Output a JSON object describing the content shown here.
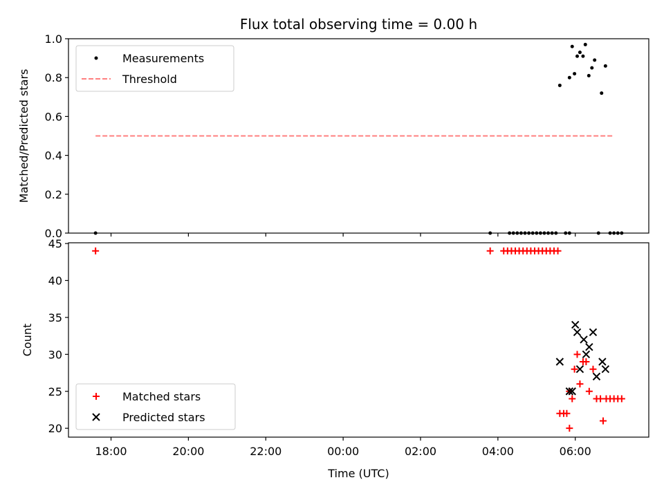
{
  "chart_data": [
    {
      "type": "scatter",
      "title": "Flux total observing time = 0.00 h",
      "xlabel": "",
      "ylabel": "Matched/Predicted stars",
      "xlim": [
        -1.1,
        13.9
      ],
      "ylim": [
        0,
        1.0
      ],
      "yticks": [
        "0.0",
        "0.2",
        "0.4",
        "0.6",
        "0.8",
        "1.0"
      ],
      "ytick_values": [
        0,
        0.2,
        0.4,
        0.6,
        0.8,
        1.0
      ],
      "legend_position": "upper left",
      "grid": false,
      "series": [
        {
          "name": "Measurements",
          "marker": "dot",
          "color": "#000000",
          "points": [
            [
              -0.4,
              0.0
            ],
            [
              9.8,
              0.0
            ],
            [
              10.3,
              0.0
            ],
            [
              10.4,
              0.0
            ],
            [
              10.5,
              0.0
            ],
            [
              10.6,
              0.0
            ],
            [
              10.7,
              0.0
            ],
            [
              10.8,
              0.0
            ],
            [
              10.9,
              0.0
            ],
            [
              11.0,
              0.0
            ],
            [
              11.1,
              0.0
            ],
            [
              11.2,
              0.0
            ],
            [
              11.3,
              0.0
            ],
            [
              11.4,
              0.0
            ],
            [
              11.5,
              0.0
            ],
            [
              11.75,
              0.0
            ],
            [
              11.85,
              0.0
            ],
            [
              12.6,
              0.0
            ],
            [
              12.9,
              0.0
            ],
            [
              13.0,
              0.0
            ],
            [
              13.1,
              0.0
            ],
            [
              13.2,
              0.0
            ],
            [
              11.6,
              0.76
            ],
            [
              11.85,
              0.8
            ],
            [
              11.92,
              0.96
            ],
            [
              11.98,
              0.82
            ],
            [
              12.05,
              0.91
            ],
            [
              12.12,
              0.93
            ],
            [
              12.2,
              0.91
            ],
            [
              12.26,
              0.97
            ],
            [
              12.35,
              0.81
            ],
            [
              12.43,
              0.85
            ],
            [
              12.5,
              0.89
            ],
            [
              12.68,
              0.72
            ],
            [
              12.78,
              0.86
            ]
          ]
        },
        {
          "name": "Threshold",
          "marker": "dashed-line",
          "color": "#ff7f7f",
          "points": [
            [
              -0.4,
              0.5
            ],
            [
              13.0,
              0.5
            ]
          ]
        }
      ]
    },
    {
      "type": "scatter",
      "title": "",
      "xlabel": "Time (UTC)",
      "ylabel": "Count",
      "xlim": [
        -1.1,
        13.9
      ],
      "ylim": [
        18.8,
        45.1
      ],
      "xticks": [
        "18:00",
        "20:00",
        "22:00",
        "00:00",
        "02:00",
        "04:00",
        "06:00"
      ],
      "xtick_values": [
        0,
        2,
        4,
        6,
        8,
        10,
        12
      ],
      "yticks": [
        "20",
        "25",
        "30",
        "35",
        "40",
        "45"
      ],
      "ytick_values": [
        20,
        25,
        30,
        35,
        40,
        45
      ],
      "legend_position": "lower left",
      "grid": false,
      "series": [
        {
          "name": "Matched stars",
          "marker": "plus",
          "color": "#ff0000",
          "points": [
            [
              -0.4,
              44
            ],
            [
              9.8,
              44
            ],
            [
              10.15,
              44
            ],
            [
              10.25,
              44
            ],
            [
              10.35,
              44
            ],
            [
              10.45,
              44
            ],
            [
              10.55,
              44
            ],
            [
              10.65,
              44
            ],
            [
              10.75,
              44
            ],
            [
              10.85,
              44
            ],
            [
              10.95,
              44
            ],
            [
              11.05,
              44
            ],
            [
              11.15,
              44
            ],
            [
              11.25,
              44
            ],
            [
              11.35,
              44
            ],
            [
              11.45,
              44
            ],
            [
              11.55,
              44
            ],
            [
              11.6,
              22
            ],
            [
              11.7,
              22
            ],
            [
              11.78,
              22
            ],
            [
              11.85,
              20
            ],
            [
              11.85,
              25
            ],
            [
              11.92,
              24
            ],
            [
              11.98,
              28
            ],
            [
              12.05,
              30
            ],
            [
              12.12,
              26
            ],
            [
              12.2,
              29
            ],
            [
              12.28,
              29
            ],
            [
              12.36,
              25
            ],
            [
              12.46,
              28
            ],
            [
              12.55,
              24
            ],
            [
              12.65,
              24
            ],
            [
              12.72,
              21
            ],
            [
              12.8,
              24
            ],
            [
              12.9,
              24
            ],
            [
              13.0,
              24
            ],
            [
              13.1,
              24
            ],
            [
              13.2,
              24
            ]
          ]
        },
        {
          "name": "Predicted stars",
          "marker": "x",
          "color": "#000000",
          "points": [
            [
              11.6,
              29
            ],
            [
              11.85,
              25
            ],
            [
              11.92,
              25
            ],
            [
              12.0,
              34
            ],
            [
              12.05,
              33
            ],
            [
              12.12,
              28
            ],
            [
              12.22,
              32
            ],
            [
              12.28,
              30
            ],
            [
              12.36,
              31
            ],
            [
              12.46,
              33
            ],
            [
              12.55,
              27
            ],
            [
              12.7,
              29
            ],
            [
              12.78,
              28
            ]
          ]
        }
      ]
    }
  ]
}
